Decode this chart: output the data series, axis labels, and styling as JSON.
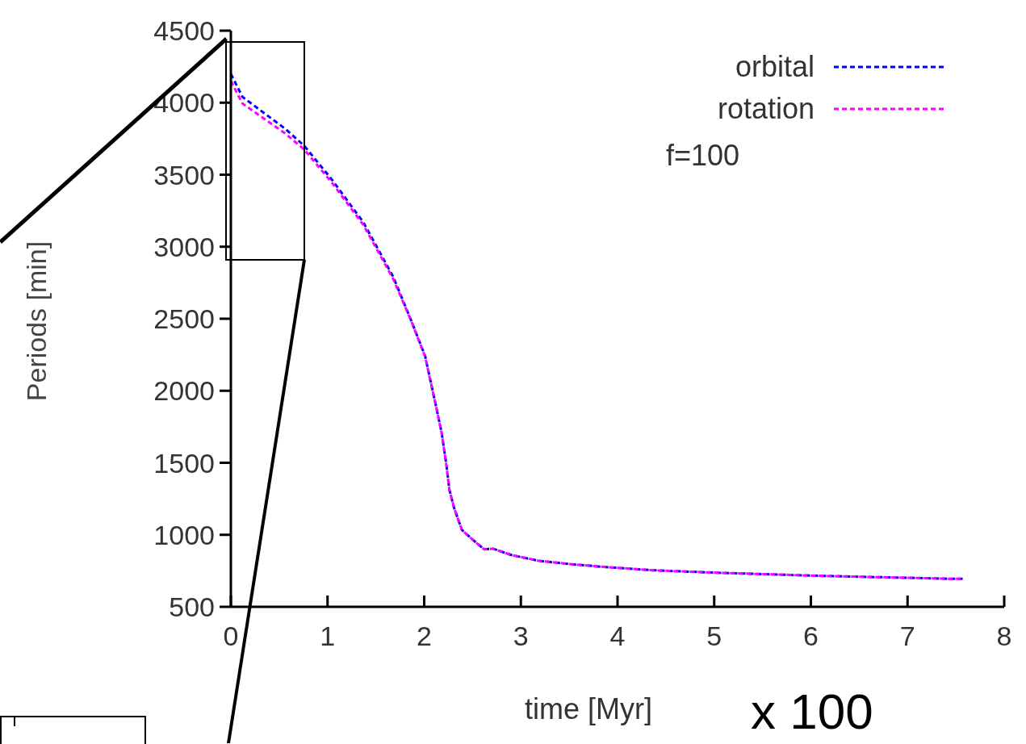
{
  "chart_data": {
    "type": "line",
    "xlabel": "time [Myr]",
    "ylabel": "Periods [min]",
    "x": [
      0,
      0.12,
      0.56,
      0.76,
      1.04,
      1.37,
      1.68,
      1.87,
      2.01,
      2.12,
      2.18,
      2.23,
      2.26,
      2.31,
      2.39,
      2.51,
      2.62,
      2.71,
      2.9,
      3.18,
      3.49,
      3.84,
      4.36,
      5.06,
      6.1,
      7.49,
      7.57
    ],
    "series": [
      {
        "name": "orbital",
        "color": "#0000ff",
        "values": [
          4200,
          4040,
          3820,
          3700,
          3470,
          3170,
          2790,
          2480,
          2240,
          1900,
          1710,
          1485,
          1315,
          1185,
          1034,
          961,
          899,
          904,
          860,
          820,
          798,
          778,
          754,
          736,
          715,
          694,
          694
        ]
      },
      {
        "name": "rotation",
        "color": "#ff00ff",
        "values": [
          4150,
          3994,
          3787,
          3674,
          3449,
          3152,
          2775,
          2478,
          2236,
          1899,
          1708,
          1483,
          1315,
          1185,
          1034,
          961,
          899,
          904,
          860,
          820,
          798,
          778,
          754,
          736,
          715,
          694,
          694
        ]
      }
    ],
    "xlim": [
      0,
      8
    ],
    "xticks": [
      0,
      1,
      2,
      3,
      4,
      5,
      6,
      7,
      8
    ],
    "ylim": [
      500,
      4500
    ],
    "yticks": [
      500,
      1000,
      1500,
      2000,
      2500,
      3000,
      3500,
      4000,
      4500
    ],
    "grid": false,
    "legend": "top right",
    "line_style": "dashed",
    "marker": "none",
    "annotations": [
      "f=100",
      "x 100"
    ]
  }
}
